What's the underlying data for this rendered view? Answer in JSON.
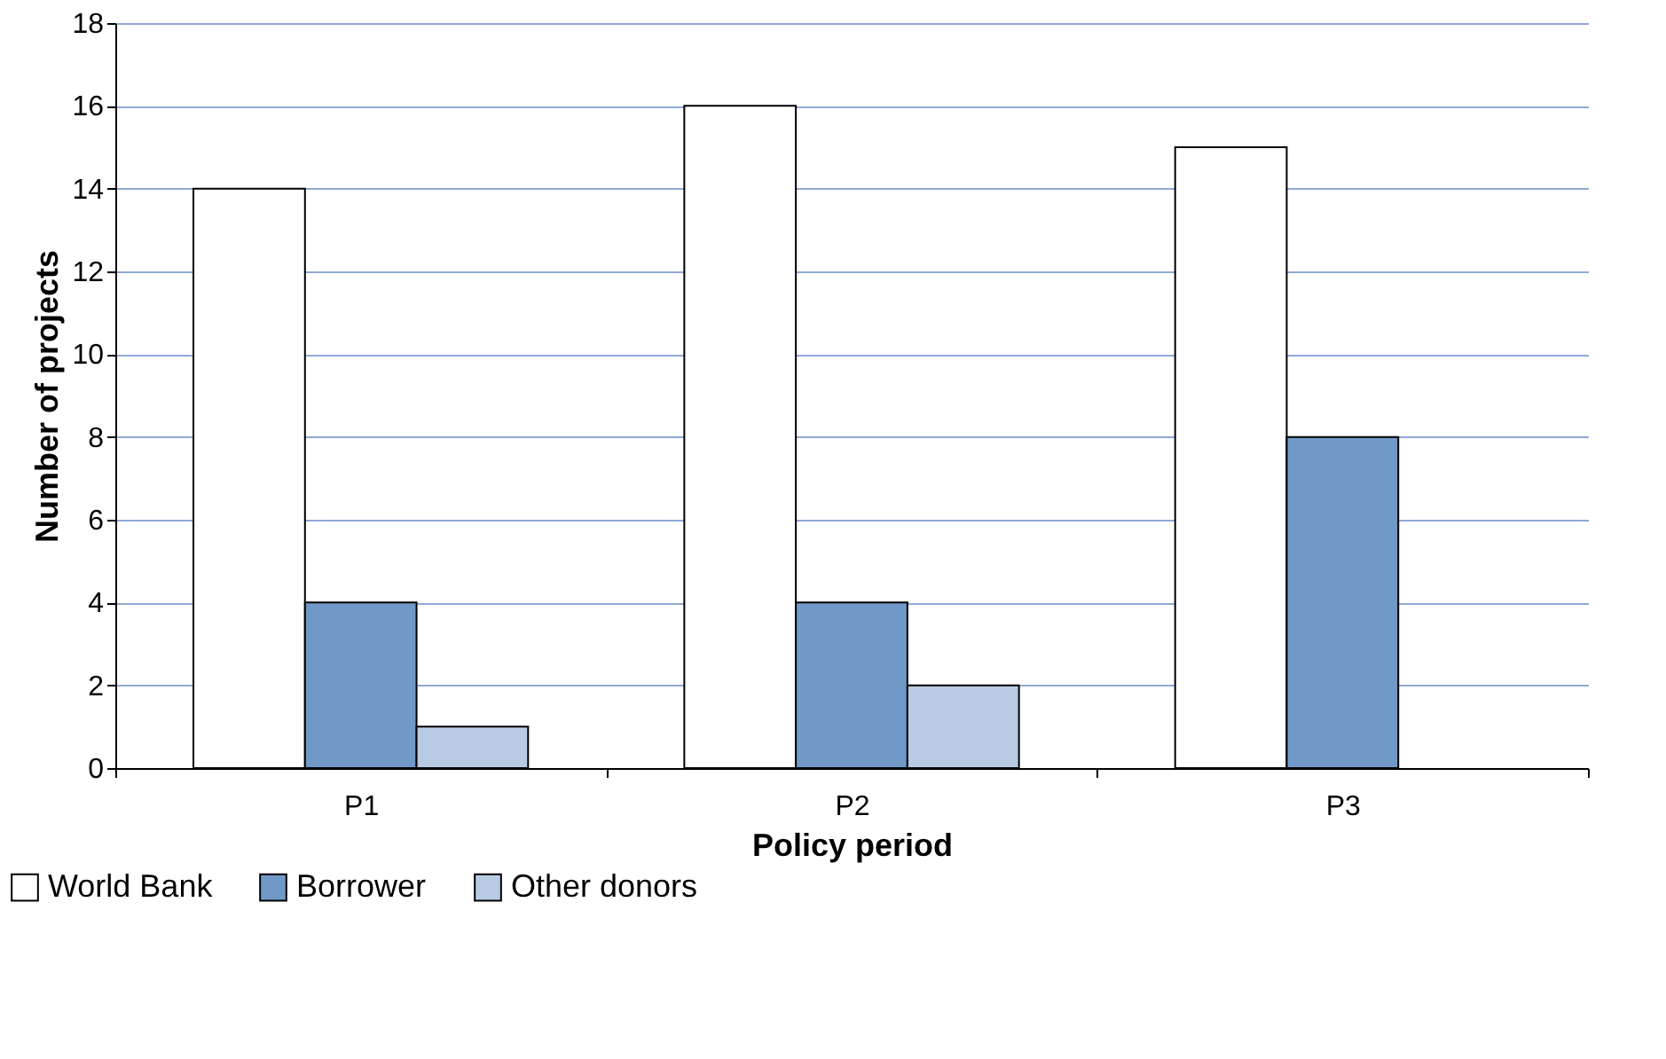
{
  "chart_data": {
    "type": "bar",
    "xlabel": "Policy period",
    "ylabel": "Number of projects",
    "categories": [
      "P1",
      "P2",
      "P3"
    ],
    "series": [
      {
        "name": "World Bank",
        "color": "#ffffff",
        "values": [
          14,
          16,
          15
        ]
      },
      {
        "name": "Borrower",
        "color": "#7099c8",
        "values": [
          4,
          4,
          8
        ]
      },
      {
        "name": "Other donors",
        "color": "#b8cbe3",
        "values": [
          1,
          2,
          null
        ]
      }
    ],
    "ylim": [
      0,
      18
    ],
    "yticks": [
      0,
      2,
      4,
      6,
      8,
      10,
      12,
      14,
      16,
      18
    ],
    "grid": "y",
    "legend": "bottom left"
  }
}
